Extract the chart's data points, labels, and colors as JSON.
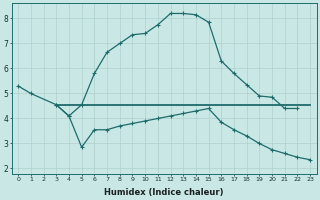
{
  "xlabel": "Humidex (Indice chaleur)",
  "bg_color": "#c9e8e5",
  "grid_color": "#aed0cc",
  "line_color": "#1e6b6b",
  "xlim_min": -0.5,
  "xlim_max": 23.5,
  "ylim_min": 1.8,
  "ylim_max": 8.6,
  "xtick_labels": [
    "0",
    "1",
    "2",
    "3",
    "4",
    "5",
    "6",
    "7",
    "8",
    "9",
    "10",
    "11",
    "12",
    "13",
    "14",
    "15",
    "16",
    "17",
    "18",
    "19",
    "20",
    "21",
    "22",
    "23"
  ],
  "ytick_vals": [
    2,
    3,
    4,
    5,
    6,
    7,
    8
  ],
  "curve_peak_x": [
    0,
    1,
    3,
    4,
    5,
    6,
    7,
    8,
    9,
    10,
    11,
    12,
    13,
    14,
    15,
    16,
    17,
    18,
    19,
    20,
    21,
    22
  ],
  "curve_peak_y": [
    5.3,
    5.0,
    4.55,
    4.1,
    4.55,
    5.8,
    6.65,
    7.0,
    7.35,
    7.4,
    7.75,
    8.2,
    8.2,
    8.15,
    7.85,
    6.3,
    5.8,
    5.35,
    4.9,
    4.85,
    4.4,
    4.4
  ],
  "curve_flat_x": [
    3,
    4,
    5,
    6,
    7,
    8,
    9,
    10,
    11,
    12,
    13,
    14,
    15,
    16,
    17,
    18,
    19,
    20,
    21,
    22,
    23
  ],
  "curve_flat_y": [
    4.55,
    4.55,
    4.55,
    4.55,
    4.55,
    4.55,
    4.55,
    4.55,
    4.55,
    4.55,
    4.55,
    4.55,
    4.55,
    4.55,
    4.55,
    4.55,
    4.55,
    4.55,
    4.55,
    4.55,
    4.55
  ],
  "curve_diag_x": [
    3,
    4,
    5,
    6,
    7,
    8,
    9,
    10,
    11,
    12,
    13,
    14,
    15,
    16,
    17,
    18,
    19,
    20,
    21,
    22,
    23
  ],
  "curve_diag_y": [
    4.55,
    4.1,
    2.85,
    3.55,
    3.55,
    3.7,
    3.8,
    3.9,
    4.0,
    4.1,
    4.2,
    4.3,
    4.4,
    3.85,
    3.55,
    3.3,
    3.0,
    2.75,
    2.6,
    2.45,
    2.35
  ]
}
